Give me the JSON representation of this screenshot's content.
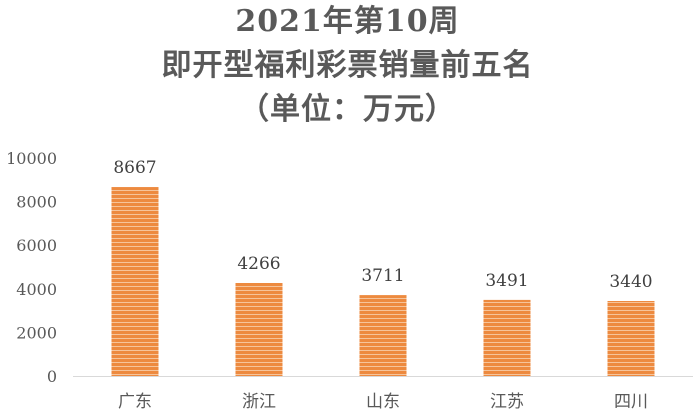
{
  "chart_data": {
    "type": "bar",
    "title_lines": [
      "2021年第10周",
      "即开型福利彩票销量前五名",
      "（单位：万元）"
    ],
    "categories": [
      "广东",
      "浙江",
      "山东",
      "江苏",
      "四川"
    ],
    "values": [
      8667,
      4266,
      3711,
      3491,
      3440
    ],
    "data_labels": [
      "8667",
      "4266",
      "3711",
      "3491",
      "3440"
    ],
    "ylim": [
      0,
      10000
    ],
    "yticks": [
      0,
      2000,
      4000,
      6000,
      8000,
      10000
    ],
    "ytick_labels": [
      "0",
      "2000",
      "4000",
      "6000",
      "8000",
      "10000"
    ],
    "xlabel": "",
    "ylabel": "",
    "grid": false,
    "legend": "none",
    "bar_color": "#ED8A3F",
    "bar_stripe_color": "#F6C49A"
  }
}
